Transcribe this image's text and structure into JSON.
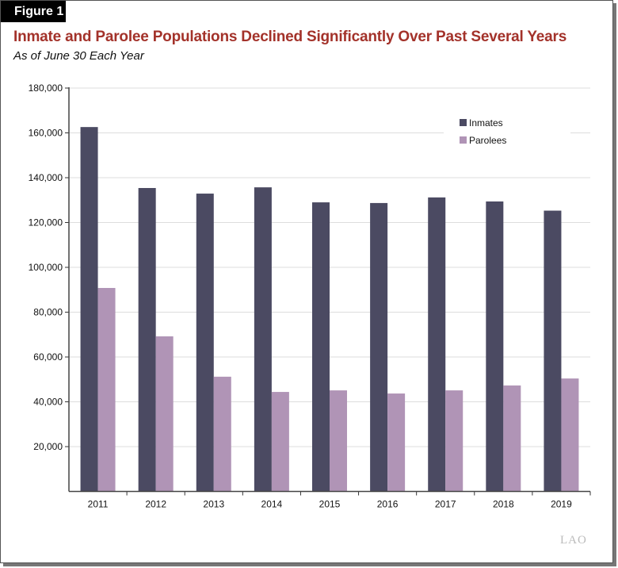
{
  "figure_label": "Figure 1",
  "logo_text": "LAO",
  "colors": {
    "inmates": "#4b4a62",
    "parolees": "#b094b6",
    "title": "#a3322a"
  },
  "chart_data": {
    "type": "bar",
    "title": "Inmate and Parolee Populations Declined Significantly Over Past Several Years",
    "subtitle": "As of June 30 Each Year",
    "categories": [
      "2011",
      "2012",
      "2013",
      "2014",
      "2015",
      "2016",
      "2017",
      "2018",
      "2019"
    ],
    "series": [
      {
        "name": "Inmates",
        "values": [
          162600,
          135400,
          132900,
          135700,
          129000,
          128700,
          131200,
          129400,
          125300
        ]
      },
      {
        "name": "Parolees",
        "values": [
          90800,
          69200,
          51200,
          44400,
          45100,
          43700,
          45100,
          47300,
          50400
        ]
      }
    ],
    "ylim": [
      0,
      180000
    ],
    "yticks": [
      "20,000",
      "40,000",
      "60,000",
      "80,000",
      "100,000",
      "120,000",
      "140,000",
      "160,000",
      "180,000"
    ],
    "grid": true,
    "legend": "top-right"
  }
}
